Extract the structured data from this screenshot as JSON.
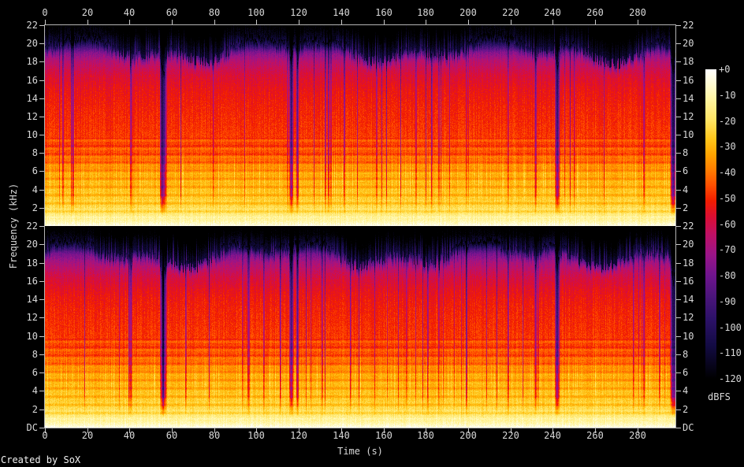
{
  "credit": "Created by SoX",
  "colors": {
    "background": "#000000",
    "axis_text": "#d9d9d9",
    "tick": "#c8c8c8",
    "frame": "#b4b4b4"
  },
  "chart_data": {
    "type": "heatmap",
    "subtype": "stereo-audio-spectrogram",
    "title": "",
    "xlabel": "Time (s)",
    "ylabel": "Frequency (kHz)",
    "colorbar_label": "dBFS",
    "x_ticks": [
      0,
      20,
      40,
      60,
      80,
      100,
      120,
      140,
      160,
      180,
      200,
      220,
      240,
      260,
      280
    ],
    "x_range_s": [
      0,
      298
    ],
    "freq_range_kHz": [
      0,
      22
    ],
    "freq_ticks": [
      {
        "label": "22",
        "kHz": 22
      },
      {
        "label": "20",
        "kHz": 20
      },
      {
        "label": "18",
        "kHz": 18
      },
      {
        "label": "16",
        "kHz": 16
      },
      {
        "label": "14",
        "kHz": 14
      },
      {
        "label": "12",
        "kHz": 12
      },
      {
        "label": "10",
        "kHz": 10
      },
      {
        "label": "8",
        "kHz": 8
      },
      {
        "label": "6",
        "kHz": 6
      },
      {
        "label": "4",
        "kHz": 4
      },
      {
        "label": "2",
        "kHz": 2
      },
      {
        "label": "DC",
        "kHz": 0
      }
    ],
    "colorbar_ticks": [
      "+0",
      "-10",
      "-20",
      "-30",
      "-40",
      "-50",
      "-60",
      "-70",
      "-80",
      "-90",
      "-100",
      "-110",
      "-120"
    ],
    "db_range": [
      0,
      -120
    ],
    "legend": "colorbar-right",
    "grid": false,
    "palette": [
      {
        "db": 0,
        "color": "#ffffff"
      },
      {
        "db": 6,
        "color": "#fffbd0"
      },
      {
        "db": 12,
        "color": "#fff49e"
      },
      {
        "db": 20,
        "color": "#ffe360"
      },
      {
        "db": 27,
        "color": "#ffc61a"
      },
      {
        "db": 33,
        "color": "#ffa400"
      },
      {
        "db": 39,
        "color": "#ff7d00"
      },
      {
        "db": 45,
        "color": "#ff4f00"
      },
      {
        "db": 51,
        "color": "#f21d00"
      },
      {
        "db": 57,
        "color": "#dc0e32"
      },
      {
        "db": 64,
        "color": "#c01064"
      },
      {
        "db": 72,
        "color": "#9a1488"
      },
      {
        "db": 80,
        "color": "#6f148e"
      },
      {
        "db": 88,
        "color": "#4c157c"
      },
      {
        "db": 97,
        "color": "#2c1168"
      },
      {
        "db": 107,
        "color": "#130b44"
      },
      {
        "db": 120,
        "color": "#000000"
      }
    ],
    "level_envelope_db_by_kHz": [
      [
        0,
        -3
      ],
      [
        0.15,
        -5
      ],
      [
        0.5,
        -10
      ],
      [
        1.2,
        -17
      ],
      [
        2,
        -23
      ],
      [
        3,
        -27
      ],
      [
        4.5,
        -31
      ],
      [
        6,
        -34.5
      ],
      [
        7,
        -41
      ],
      [
        8,
        -45
      ],
      [
        10,
        -48
      ],
      [
        13,
        -51
      ],
      [
        15,
        -54
      ],
      [
        16.5,
        -58
      ],
      [
        18,
        -66
      ],
      [
        19,
        -76
      ],
      [
        19.6,
        -90
      ],
      [
        20.3,
        -105
      ],
      [
        21,
        -115
      ],
      [
        22,
        -120
      ]
    ],
    "panels": [
      {
        "name": "channel-1",
        "cap_kHz": 19.45,
        "hf_extra_attn_db": 0,
        "seed": 101
      },
      {
        "name": "channel-2",
        "cap_kHz": 19.05,
        "hf_extra_attn_db": 3,
        "seed": 202
      }
    ],
    "quiet_gaps_s": [
      {
        "t": 40.5,
        "w": 1.2,
        "d": 26
      },
      {
        "t": 55.8,
        "w": 3.6,
        "d": 46
      },
      {
        "t": 116.3,
        "w": 2.4,
        "d": 42
      },
      {
        "t": 119.2,
        "w": 1.6,
        "d": 34
      },
      {
        "t": 186.0,
        "w": 0.9,
        "d": 18
      },
      {
        "t": 199.0,
        "w": 0.8,
        "d": 16
      },
      {
        "t": 231.8,
        "w": 1.4,
        "d": 26
      },
      {
        "t": 242.0,
        "w": 2.6,
        "d": 44
      },
      {
        "t": 283.0,
        "w": 1.0,
        "d": 22
      },
      {
        "t": 296.8,
        "w": 3.2,
        "d": 55
      }
    ]
  }
}
